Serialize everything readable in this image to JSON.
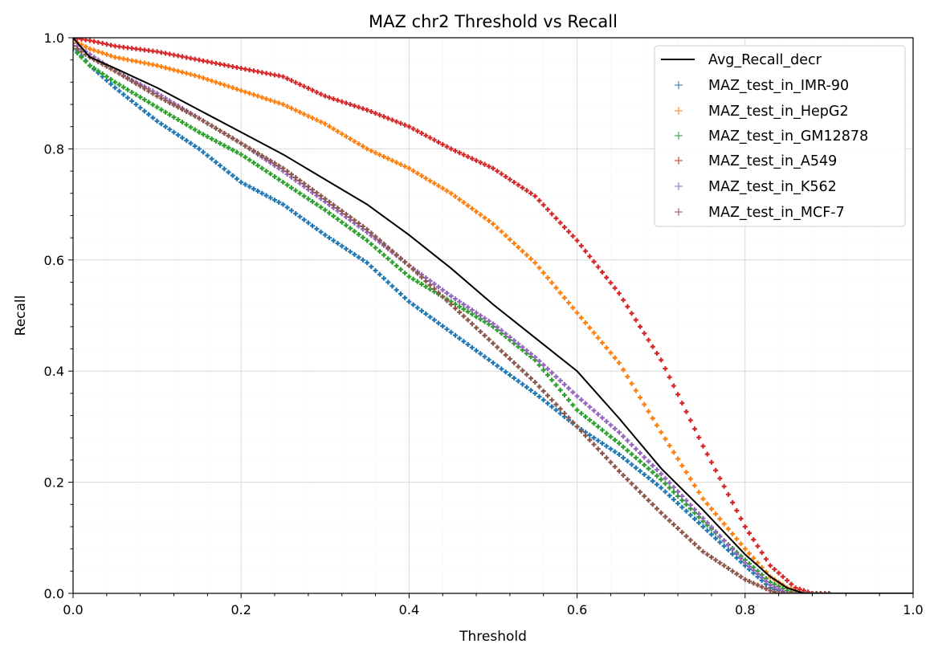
{
  "chart_data": {
    "type": "scatter",
    "title": "MAZ chr2 Threshold vs Recall",
    "xlabel": "Threshold",
    "ylabel": "Recall",
    "xlim": [
      0.0,
      1.0
    ],
    "ylim": [
      0.0,
      1.0
    ],
    "x_ticks": [
      "0.0",
      "0.2",
      "0.4",
      "0.6",
      "0.8",
      "1.0"
    ],
    "y_ticks": [
      "0.0",
      "0.2",
      "0.4",
      "0.6",
      "0.8",
      "1.0"
    ],
    "grid": true,
    "minor_grid": true,
    "legend_position": "top-right",
    "series": [
      {
        "name": "Avg_Recall_decr",
        "style": "line",
        "color": "#000000",
        "points": [
          [
            0.0,
            1.0
          ],
          [
            0.02,
            0.965
          ],
          [
            0.05,
            0.945
          ],
          [
            0.1,
            0.91
          ],
          [
            0.15,
            0.87
          ],
          [
            0.2,
            0.83
          ],
          [
            0.25,
            0.79
          ],
          [
            0.3,
            0.745
          ],
          [
            0.35,
            0.7
          ],
          [
            0.4,
            0.645
          ],
          [
            0.45,
            0.585
          ],
          [
            0.5,
            0.52
          ],
          [
            0.55,
            0.46
          ],
          [
            0.6,
            0.4
          ],
          [
            0.65,
            0.315
          ],
          [
            0.7,
            0.225
          ],
          [
            0.75,
            0.15
          ],
          [
            0.8,
            0.07
          ],
          [
            0.83,
            0.03
          ],
          [
            0.85,
            0.01
          ],
          [
            0.87,
            0.0
          ],
          [
            1.0,
            0.0
          ]
        ]
      },
      {
        "name": "MAZ_test_in_IMR-90",
        "style": "marker",
        "color": "#1f77b4",
        "points": [
          [
            0.0,
            0.985
          ],
          [
            0.02,
            0.95
          ],
          [
            0.05,
            0.91
          ],
          [
            0.1,
            0.85
          ],
          [
            0.15,
            0.8
          ],
          [
            0.2,
            0.74
          ],
          [
            0.25,
            0.7
          ],
          [
            0.3,
            0.645
          ],
          [
            0.35,
            0.595
          ],
          [
            0.4,
            0.525
          ],
          [
            0.45,
            0.47
          ],
          [
            0.5,
            0.415
          ],
          [
            0.55,
            0.36
          ],
          [
            0.6,
            0.3
          ],
          [
            0.65,
            0.25
          ],
          [
            0.7,
            0.19
          ],
          [
            0.75,
            0.12
          ],
          [
            0.8,
            0.05
          ],
          [
            0.83,
            0.01
          ],
          [
            0.85,
            0.0
          ],
          [
            1.0,
            0.0
          ]
        ]
      },
      {
        "name": "MAZ_test_in_HepG2",
        "style": "marker",
        "color": "#ff7f0e",
        "points": [
          [
            0.0,
            0.995
          ],
          [
            0.02,
            0.98
          ],
          [
            0.05,
            0.965
          ],
          [
            0.1,
            0.95
          ],
          [
            0.15,
            0.93
          ],
          [
            0.2,
            0.905
          ],
          [
            0.25,
            0.88
          ],
          [
            0.3,
            0.845
          ],
          [
            0.35,
            0.8
          ],
          [
            0.4,
            0.765
          ],
          [
            0.45,
            0.72
          ],
          [
            0.5,
            0.665
          ],
          [
            0.55,
            0.595
          ],
          [
            0.6,
            0.505
          ],
          [
            0.65,
            0.415
          ],
          [
            0.7,
            0.29
          ],
          [
            0.75,
            0.17
          ],
          [
            0.8,
            0.08
          ],
          [
            0.83,
            0.03
          ],
          [
            0.85,
            0.01
          ],
          [
            0.87,
            0.0
          ],
          [
            1.0,
            0.0
          ]
        ]
      },
      {
        "name": "MAZ_test_in_GM12878",
        "style": "marker",
        "color": "#2ca02c",
        "points": [
          [
            0.0,
            0.98
          ],
          [
            0.02,
            0.95
          ],
          [
            0.05,
            0.92
          ],
          [
            0.1,
            0.875
          ],
          [
            0.15,
            0.83
          ],
          [
            0.2,
            0.79
          ],
          [
            0.25,
            0.74
          ],
          [
            0.3,
            0.69
          ],
          [
            0.35,
            0.635
          ],
          [
            0.4,
            0.57
          ],
          [
            0.45,
            0.525
          ],
          [
            0.5,
            0.48
          ],
          [
            0.55,
            0.42
          ],
          [
            0.6,
            0.33
          ],
          [
            0.65,
            0.27
          ],
          [
            0.7,
            0.205
          ],
          [
            0.75,
            0.13
          ],
          [
            0.8,
            0.06
          ],
          [
            0.83,
            0.02
          ],
          [
            0.85,
            0.005
          ],
          [
            0.86,
            0.0
          ],
          [
            1.0,
            0.0
          ]
        ]
      },
      {
        "name": "MAZ_test_in_A549",
        "style": "marker",
        "color": "#d62728",
        "points": [
          [
            0.0,
            1.0
          ],
          [
            0.02,
            0.995
          ],
          [
            0.05,
            0.985
          ],
          [
            0.1,
            0.975
          ],
          [
            0.15,
            0.96
          ],
          [
            0.2,
            0.945
          ],
          [
            0.25,
            0.93
          ],
          [
            0.3,
            0.895
          ],
          [
            0.35,
            0.87
          ],
          [
            0.4,
            0.84
          ],
          [
            0.45,
            0.8
          ],
          [
            0.5,
            0.765
          ],
          [
            0.55,
            0.715
          ],
          [
            0.6,
            0.635
          ],
          [
            0.65,
            0.54
          ],
          [
            0.7,
            0.42
          ],
          [
            0.75,
            0.265
          ],
          [
            0.8,
            0.12
          ],
          [
            0.83,
            0.05
          ],
          [
            0.86,
            0.01
          ],
          [
            0.88,
            0.0
          ],
          [
            1.0,
            0.0
          ]
        ]
      },
      {
        "name": "MAZ_test_in_K562",
        "style": "marker",
        "color": "#9467bd",
        "points": [
          [
            0.0,
            0.99
          ],
          [
            0.02,
            0.97
          ],
          [
            0.05,
            0.94
          ],
          [
            0.1,
            0.9
          ],
          [
            0.15,
            0.855
          ],
          [
            0.2,
            0.81
          ],
          [
            0.25,
            0.76
          ],
          [
            0.3,
            0.705
          ],
          [
            0.35,
            0.65
          ],
          [
            0.4,
            0.59
          ],
          [
            0.45,
            0.535
          ],
          [
            0.5,
            0.485
          ],
          [
            0.55,
            0.425
          ],
          [
            0.6,
            0.355
          ],
          [
            0.65,
            0.29
          ],
          [
            0.7,
            0.215
          ],
          [
            0.75,
            0.135
          ],
          [
            0.8,
            0.055
          ],
          [
            0.83,
            0.015
          ],
          [
            0.85,
            0.0
          ],
          [
            1.0,
            0.0
          ]
        ]
      },
      {
        "name": "MAZ_test_in_MCF-7",
        "style": "marker",
        "color": "#8c564b",
        "points": [
          [
            0.0,
            0.985
          ],
          [
            0.02,
            0.965
          ],
          [
            0.05,
            0.94
          ],
          [
            0.1,
            0.895
          ],
          [
            0.15,
            0.855
          ],
          [
            0.2,
            0.81
          ],
          [
            0.25,
            0.765
          ],
          [
            0.3,
            0.71
          ],
          [
            0.35,
            0.655
          ],
          [
            0.4,
            0.59
          ],
          [
            0.45,
            0.52
          ],
          [
            0.5,
            0.45
          ],
          [
            0.55,
            0.38
          ],
          [
            0.6,
            0.3
          ],
          [
            0.65,
            0.22
          ],
          [
            0.7,
            0.145
          ],
          [
            0.75,
            0.075
          ],
          [
            0.8,
            0.025
          ],
          [
            0.83,
            0.005
          ],
          [
            0.84,
            0.0
          ],
          [
            1.0,
            0.0
          ]
        ]
      }
    ]
  }
}
